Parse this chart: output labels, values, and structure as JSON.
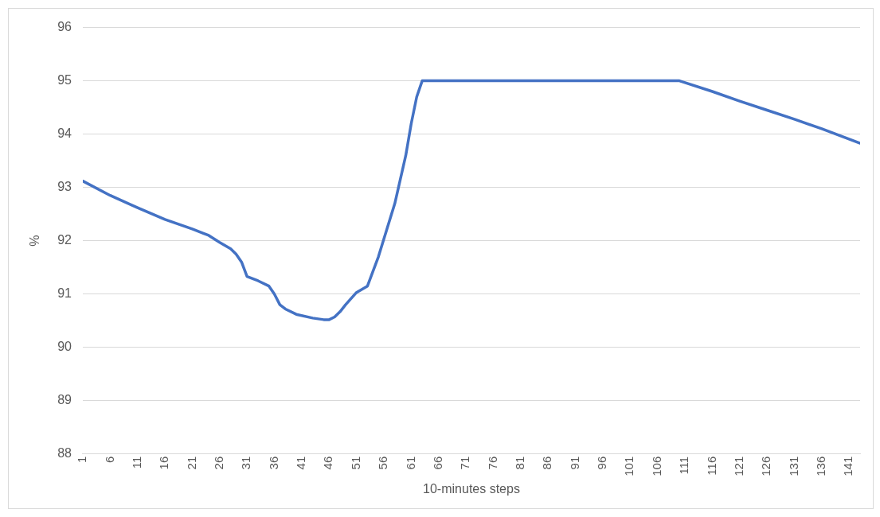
{
  "chart_data": {
    "type": "line",
    "xlabel": "10-minutes steps",
    "ylabel": "%",
    "series": [
      {
        "color": "#4472c4",
        "x": [
          1,
          6,
          11,
          16,
          21,
          24,
          26,
          28,
          29,
          30,
          31,
          33,
          35,
          36,
          37,
          38,
          40,
          43,
          45,
          46,
          47,
          48,
          49,
          51,
          53,
          55,
          58,
          60,
          61,
          62,
          63,
          70,
          80,
          90,
          100,
          108,
          110,
          116,
          121,
          126,
          131,
          136,
          143
        ],
        "values": [
          93.12,
          92.85,
          92.62,
          92.4,
          92.22,
          92.1,
          91.97,
          91.85,
          91.75,
          91.6,
          91.33,
          91.25,
          91.15,
          91.0,
          90.8,
          90.72,
          90.62,
          90.55,
          90.52,
          90.52,
          90.57,
          90.67,
          90.8,
          91.03,
          91.15,
          91.7,
          92.7,
          93.6,
          94.2,
          94.7,
          95.0,
          95.0,
          95.0,
          95.0,
          95.0,
          95.0,
          95.0,
          94.8,
          94.62,
          94.45,
          94.28,
          94.1,
          93.83
        ]
      }
    ],
    "xlim": [
      1,
      143
    ],
    "xticks": [
      1,
      6,
      11,
      16,
      21,
      26,
      31,
      36,
      41,
      46,
      51,
      56,
      61,
      66,
      71,
      76,
      81,
      86,
      91,
      96,
      101,
      106,
      111,
      116,
      121,
      126,
      131,
      136,
      141
    ],
    "ylim": [
      88,
      96
    ],
    "yticks": [
      88,
      89,
      90,
      91,
      92,
      93,
      94,
      95,
      96
    ],
    "grid": "y",
    "legend": false,
    "marker": "none",
    "line_style": "solid"
  }
}
